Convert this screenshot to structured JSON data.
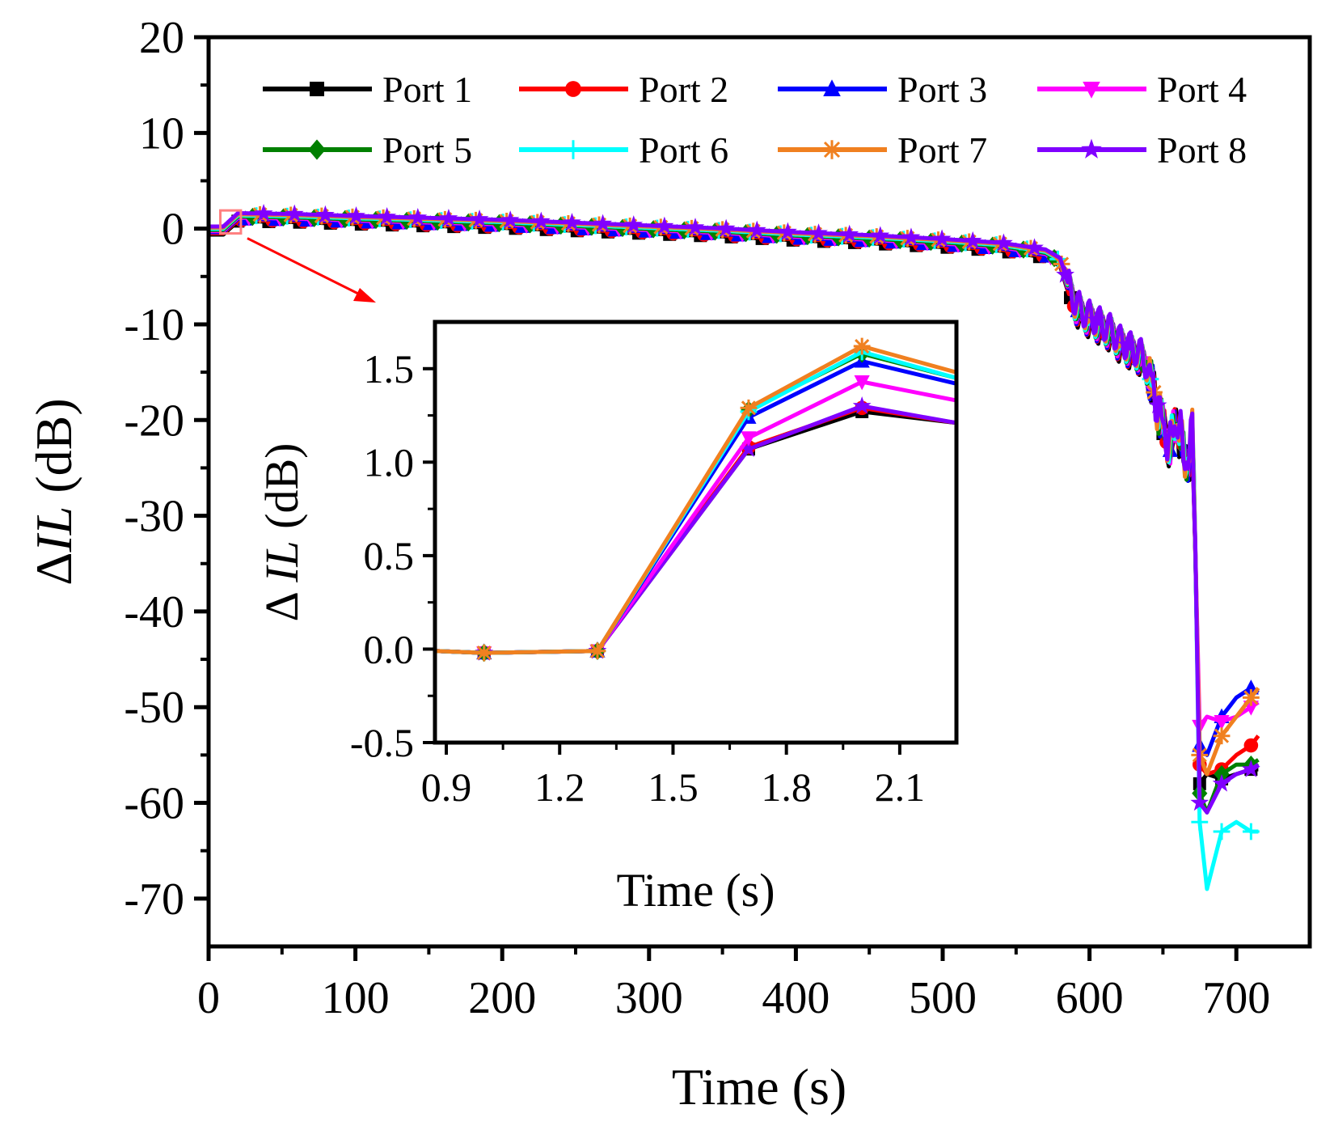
{
  "chart_data": [
    {
      "type": "line",
      "role": "main",
      "xlabel": "Time (s)",
      "ylabel_prefix": "Δ",
      "ylabel_italic": "IL",
      "ylabel_suffix": " (dB)",
      "xlim": [
        0,
        750
      ],
      "ylim": [
        -75,
        20
      ],
      "xticks": [
        0,
        100,
        200,
        300,
        400,
        500,
        600,
        700
      ],
      "yticks": [
        20,
        10,
        0,
        -10,
        -20,
        -30,
        -40,
        -50,
        -60,
        -70
      ],
      "xtick_labels": [
        "0",
        "100",
        "200",
        "300",
        "400",
        "500",
        "600",
        "700"
      ],
      "ytick_labels": [
        "20",
        "10",
        "0",
        "-10",
        "-20",
        "-30",
        "-40",
        "-50",
        "-60",
        "-70"
      ],
      "grid": false,
      "legend_position": "top",
      "base_curve": {
        "x": [
          0,
          10,
          20,
          60,
          100,
          150,
          200,
          250,
          300,
          350,
          400,
          450,
          500,
          540,
          570,
          580,
          585,
          590,
          595,
          600,
          605,
          610,
          615,
          620,
          625,
          630,
          635,
          640,
          645,
          650,
          655,
          660,
          665,
          670,
          675,
          680,
          685,
          690,
          695,
          700,
          705,
          710,
          715
        ],
        "y": [
          -0.2,
          -0.2,
          1.2,
          1.1,
          0.9,
          0.7,
          0.5,
          0.2,
          -0.1,
          -0.4,
          -0.8,
          -1.1,
          -1.5,
          -1.9,
          -2.6,
          -3.5,
          -6,
          -8,
          -9,
          -9.5,
          -10,
          -10.5,
          -11,
          -12,
          -12.5,
          -13,
          -13.5,
          -15,
          -18,
          -21,
          -23,
          -20,
          -25,
          -22,
          -50,
          -58,
          -57,
          -56,
          -56,
          -55,
          -55.5,
          -56,
          -56
        ]
      },
      "series": [
        {
          "name": "Port 1",
          "color": "#000000",
          "marker": "square"
        },
        {
          "name": "Port 2",
          "color": "#ff0000",
          "marker": "circle"
        },
        {
          "name": "Port 3",
          "color": "#0000ff",
          "marker": "triangle-up"
        },
        {
          "name": "Port 4",
          "color": "#ff00ff",
          "marker": "triangle-down"
        },
        {
          "name": "Port 5",
          "color": "#008000",
          "marker": "diamond"
        },
        {
          "name": "Port 6",
          "color": "#00ffff",
          "marker": "plus"
        },
        {
          "name": "Port 7",
          "color": "#f08020",
          "marker": "asterisk"
        },
        {
          "name": "Port 8",
          "color": "#8000ff",
          "marker": "star"
        }
      ],
      "tail_values": [
        {
          "x": [
            675,
            680,
            690,
            700,
            710,
            715
          ],
          "y": [
            -58,
            -57,
            -57.5,
            -57,
            -56.5,
            -56.5
          ]
        },
        {
          "x": [
            675,
            680,
            690,
            700,
            710,
            715
          ],
          "y": [
            -56,
            -57,
            -56.5,
            -55,
            -54,
            -53
          ]
        },
        {
          "x": [
            675,
            680,
            690,
            700,
            710,
            715
          ],
          "y": [
            -54,
            -55,
            -51,
            -49,
            -48,
            -48.5
          ]
        },
        {
          "x": [
            675,
            680,
            690,
            700,
            710,
            715
          ],
          "y": [
            -52,
            -51,
            -51.5,
            -51,
            -50,
            -49.5
          ]
        },
        {
          "x": [
            675,
            680,
            690,
            700,
            710,
            715
          ],
          "y": [
            -59,
            -61,
            -57,
            -56,
            -56,
            -55.5
          ]
        },
        {
          "x": [
            675,
            680,
            690,
            700,
            710,
            715
          ],
          "y": [
            -62,
            -69,
            -63,
            -62,
            -63,
            -63
          ]
        },
        {
          "x": [
            675,
            680,
            690,
            700,
            710,
            715
          ],
          "y": [
            -55,
            -57,
            -53,
            -51,
            -49,
            -48
          ]
        },
        {
          "x": [
            675,
            680,
            690,
            700,
            710,
            715
          ],
          "y": [
            -60,
            -61,
            -58,
            -57,
            -56.5,
            -56
          ]
        }
      ],
      "zoom_box": {
        "x": [
          8,
          22
        ],
        "y": [
          -0.5,
          1.9
        ]
      }
    },
    {
      "type": "line",
      "role": "inset",
      "xlabel": "Time (s)",
      "ylabel_prefix": "Δ ",
      "ylabel_italic": "IL",
      "ylabel_suffix": " (dB)",
      "xlim": [
        0.87,
        2.25
      ],
      "ylim": [
        -0.5,
        1.75
      ],
      "xticks": [
        0.9,
        1.2,
        1.5,
        1.8,
        2.1
      ],
      "yticks": [
        1.5,
        1.0,
        0.5,
        0.0,
        -0.5
      ],
      "xtick_labels": [
        "0.9",
        "1.2",
        "1.5",
        "1.8",
        "2.1"
      ],
      "ytick_labels": [
        "1.5",
        "1.0",
        "0.5",
        "0.0",
        "-0.5"
      ],
      "x": [
        0.87,
        1.0,
        1.3,
        1.7,
        2.0,
        2.25
      ],
      "series": [
        {
          "name": "Port 1",
          "y": [
            -0.01,
            -0.02,
            -0.01,
            1.07,
            1.27,
            1.21
          ]
        },
        {
          "name": "Port 2",
          "y": [
            -0.01,
            -0.02,
            -0.01,
            1.08,
            1.29,
            1.21
          ]
        },
        {
          "name": "Port 3",
          "y": [
            -0.01,
            -0.02,
            -0.01,
            1.24,
            1.54,
            1.42
          ]
        },
        {
          "name": "Port 4",
          "y": [
            -0.01,
            -0.02,
            -0.01,
            1.13,
            1.43,
            1.33
          ]
        },
        {
          "name": "Port 5",
          "y": [
            -0.01,
            -0.02,
            -0.01,
            1.28,
            1.58,
            1.45
          ]
        },
        {
          "name": "Port 6",
          "y": [
            -0.01,
            -0.02,
            -0.01,
            1.27,
            1.59,
            1.45
          ]
        },
        {
          "name": "Port 7",
          "y": [
            -0.01,
            -0.02,
            -0.01,
            1.29,
            1.62,
            1.48
          ]
        },
        {
          "name": "Port 8",
          "y": [
            -0.01,
            -0.02,
            -0.01,
            1.07,
            1.3,
            1.21
          ]
        }
      ]
    }
  ],
  "annotation": {
    "arrow_color": "#ff0000",
    "box_color": "#ff8080"
  }
}
